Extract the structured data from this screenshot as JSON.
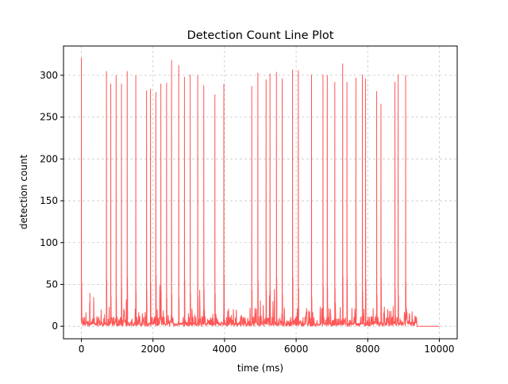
{
  "chart_data": {
    "type": "line",
    "title": "Detection Count Line Plot",
    "xlabel": "time (ms)",
    "ylabel": "detection count",
    "xlim": [
      -500,
      10500
    ],
    "ylim": [
      -15,
      335
    ],
    "xticks": [
      0,
      2000,
      4000,
      6000,
      8000,
      10000
    ],
    "xtick_labels": [
      "0",
      "2000",
      "4000",
      "6000",
      "8000",
      "10000"
    ],
    "yticks": [
      0,
      50,
      100,
      150,
      200,
      250,
      300
    ],
    "ytick_labels": [
      "0",
      "50",
      "100",
      "150",
      "200",
      "250",
      "300"
    ],
    "grid": true,
    "grid_style": "dashed",
    "legend": "none",
    "series": [
      {
        "color": "#ff4d4d",
        "activity_end_x": 9380,
        "flat_tail": [
          [
            9380,
            0
          ],
          [
            10000,
            0
          ]
        ],
        "peaks": [
          {
            "x": 0,
            "y": 321
          },
          {
            "x": 230,
            "y": 28
          },
          {
            "x": 700,
            "y": 305
          },
          {
            "x": 820,
            "y": 290
          },
          {
            "x": 970,
            "y": 300
          },
          {
            "x": 1120,
            "y": 290
          },
          {
            "x": 1280,
            "y": 305
          },
          {
            "x": 1520,
            "y": 300
          },
          {
            "x": 1820,
            "y": 282
          },
          {
            "x": 1930,
            "y": 284
          },
          {
            "x": 2080,
            "y": 280
          },
          {
            "x": 2220,
            "y": 290
          },
          {
            "x": 2380,
            "y": 291
          },
          {
            "x": 2520,
            "y": 318
          },
          {
            "x": 2720,
            "y": 312
          },
          {
            "x": 2880,
            "y": 298
          },
          {
            "x": 3040,
            "y": 301
          },
          {
            "x": 3250,
            "y": 300
          },
          {
            "x": 3420,
            "y": 288
          },
          {
            "x": 3730,
            "y": 277
          },
          {
            "x": 3980,
            "y": 290
          },
          {
            "x": 4760,
            "y": 287
          },
          {
            "x": 4930,
            "y": 303
          },
          {
            "x": 5160,
            "y": 295
          },
          {
            "x": 5270,
            "y": 302
          },
          {
            "x": 5450,
            "y": 304
          },
          {
            "x": 5610,
            "y": 296
          },
          {
            "x": 5900,
            "y": 307
          },
          {
            "x": 6060,
            "y": 306
          },
          {
            "x": 6430,
            "y": 301
          },
          {
            "x": 6750,
            "y": 301
          },
          {
            "x": 6870,
            "y": 300
          },
          {
            "x": 7080,
            "y": 292
          },
          {
            "x": 7300,
            "y": 314
          },
          {
            "x": 7420,
            "y": 292
          },
          {
            "x": 7670,
            "y": 297
          },
          {
            "x": 7850,
            "y": 301
          },
          {
            "x": 7940,
            "y": 296
          },
          {
            "x": 8250,
            "y": 281
          },
          {
            "x": 8370,
            "y": 266
          },
          {
            "x": 8760,
            "y": 292
          },
          {
            "x": 8850,
            "y": 301
          },
          {
            "x": 9060,
            "y": 300
          }
        ]
      }
    ]
  }
}
